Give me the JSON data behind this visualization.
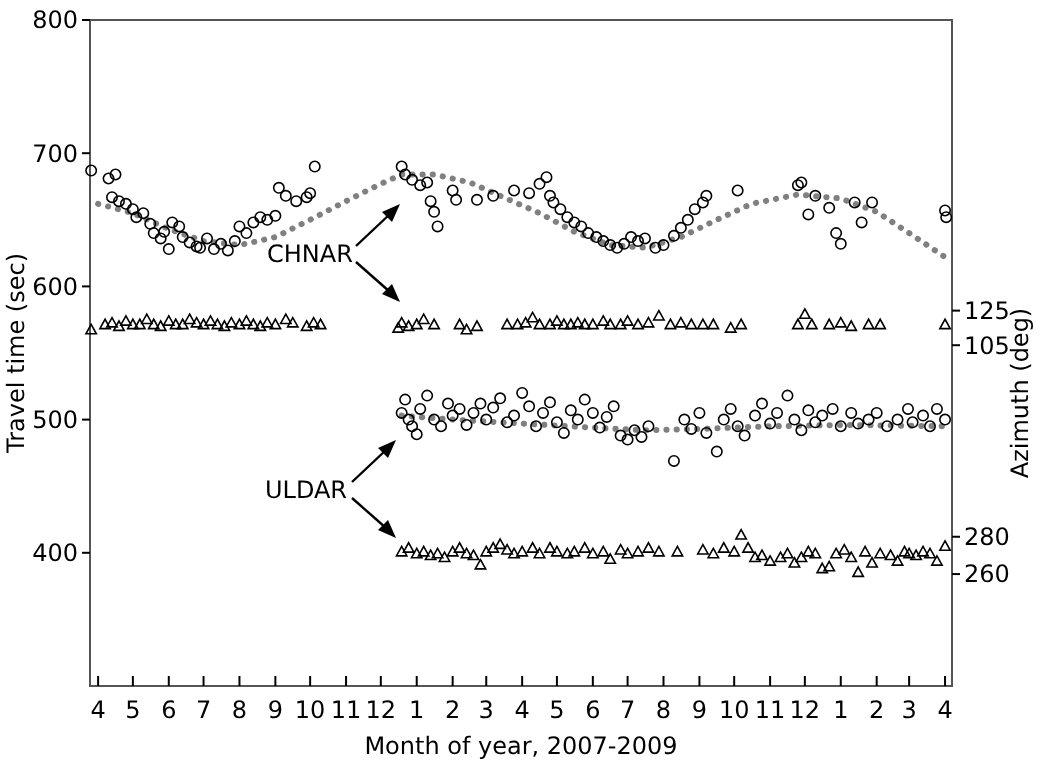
{
  "chart_data": {
    "type": "scatter",
    "xlabel": "Month of year, 2007-2009",
    "ylabel": "Travel time (sec)",
    "y2label": "Azimuth (deg)",
    "xlim": [
      "2007-03-25",
      "2009-04-07"
    ],
    "xticks": [
      {
        "value": "2007-04-01",
        "label": "4"
      },
      {
        "value": "2007-05-01",
        "label": "5"
      },
      {
        "value": "2007-06-01",
        "label": "6"
      },
      {
        "value": "2007-07-01",
        "label": "7"
      },
      {
        "value": "2007-08-01",
        "label": "8"
      },
      {
        "value": "2007-09-01",
        "label": "9"
      },
      {
        "value": "2007-10-01",
        "label": "10"
      },
      {
        "value": "2007-11-01",
        "label": "11"
      },
      {
        "value": "2007-12-01",
        "label": "12"
      },
      {
        "value": "2008-01-01",
        "label": "1"
      },
      {
        "value": "2008-02-01",
        "label": "2"
      },
      {
        "value": "2008-03-01",
        "label": "3"
      },
      {
        "value": "2008-04-01",
        "label": "4"
      },
      {
        "value": "2008-05-01",
        "label": "5"
      },
      {
        "value": "2008-06-01",
        "label": "6"
      },
      {
        "value": "2008-07-01",
        "label": "7"
      },
      {
        "value": "2008-08-01",
        "label": "8"
      },
      {
        "value": "2008-09-01",
        "label": "9"
      },
      {
        "value": "2008-10-01",
        "label": "10"
      },
      {
        "value": "2008-11-01",
        "label": "11"
      },
      {
        "value": "2008-12-01",
        "label": "12"
      },
      {
        "value": "2009-01-01",
        "label": "1"
      },
      {
        "value": "2009-02-01",
        "label": "2"
      },
      {
        "value": "2009-03-01",
        "label": "3"
      },
      {
        "value": "2009-04-01",
        "label": "4"
      }
    ],
    "ylim": [
      300,
      800
    ],
    "yticks": [
      400,
      500,
      600,
      700,
      800
    ],
    "y2lim": [
      -92,
      293
    ],
    "y2ticks": [
      125,
      105
    ],
    "y3lim": [
      200,
      557
    ],
    "y3ticks": [
      280,
      260
    ],
    "grid": false,
    "annotations": [
      "CHNAR",
      "ULDAR"
    ],
    "series": [
      {
        "type": "line",
        "color": "#808080",
        "line_style": "dotted",
        "marker": "none",
        "x": [
          "2007-04-01",
          "2007-05-01",
          "2007-06-01",
          "2007-07-01",
          "2007-08-01",
          "2007-09-01",
          "2007-10-01",
          "2007-11-01",
          "2007-12-01",
          "2007-12-19",
          "2008-01-16",
          "2008-02-16",
          "2008-03-13",
          "2008-04-16",
          "2008-05-16",
          "2008-06-16",
          "2008-07-16",
          "2008-08-16",
          "2008-09-16",
          "2008-10-16",
          "2008-11-25",
          "2009-01-01",
          "2009-02-01",
          "2009-03-01",
          "2009-04-01"
        ],
        "values": [
          662,
          655,
          643,
          634,
          631,
          637,
          650,
          664,
          677,
          684,
          684,
          678,
          668,
          655,
          641,
          631,
          629,
          637,
          650,
          662,
          669,
          666,
          656,
          640,
          622
        ]
      },
      {
        "type": "line",
        "color": "#808080",
        "line_style": "dotted",
        "marker": "none",
        "x": [
          "2007-12-19",
          "2008-02-01",
          "2008-04-01",
          "2008-06-01",
          "2008-07-16",
          "2008-09-01",
          "2008-11-01",
          "2009-01-01",
          "2009-04-01"
        ],
        "values": [
          503,
          500,
          497,
          494,
          492,
          493,
          495,
          496,
          495
        ]
      },
      {
        "color": "#000000",
        "marker": "circle",
        "x": [
          "2007-03-26",
          "2007-04-10",
          "2007-04-13",
          "2007-04-16",
          "2007-04-19",
          "2007-04-25",
          "2007-05-01",
          "2007-05-04",
          "2007-05-10",
          "2007-05-16",
          "2007-05-19",
          "2007-05-25",
          "2007-05-28",
          "2007-06-01",
          "2007-06-04",
          "2007-06-10",
          "2007-06-13",
          "2007-06-19",
          "2007-06-25",
          "2007-06-28",
          "2007-07-04",
          "2007-07-10",
          "2007-07-16",
          "2007-07-22",
          "2007-07-28",
          "2007-08-01",
          "2007-08-07",
          "2007-08-13",
          "2007-08-19",
          "2007-08-25",
          "2007-09-01",
          "2007-09-04",
          "2007-09-10",
          "2007-09-19",
          "2007-09-28",
          "2007-10-01",
          "2007-10-05",
          "2007-12-19",
          "2007-12-22",
          "2007-12-28",
          "2008-01-04",
          "2008-01-10",
          "2008-01-13",
          "2008-01-16",
          "2008-01-19",
          "2008-02-01",
          "2008-02-04",
          "2008-02-22",
          "2008-03-07",
          "2008-03-25",
          "2008-04-07",
          "2008-04-16",
          "2008-04-22",
          "2008-04-25",
          "2008-04-28",
          "2008-05-04",
          "2008-05-10",
          "2008-05-16",
          "2008-05-22",
          "2008-05-28",
          "2008-06-04",
          "2008-06-10",
          "2008-06-16",
          "2008-06-22",
          "2008-06-28",
          "2008-07-04",
          "2008-07-10",
          "2008-07-16",
          "2008-07-25",
          "2008-08-01",
          "2008-08-10",
          "2008-08-16",
          "2008-08-22",
          "2008-08-28",
          "2008-09-04",
          "2008-09-07",
          "2008-10-04",
          "2008-11-25",
          "2008-11-28",
          "2008-12-04",
          "2008-12-10",
          "2008-12-22",
          "2008-12-28",
          "2009-01-01",
          "2009-01-13",
          "2009-01-19",
          "2009-01-28",
          "2009-04-01",
          "2009-04-02"
        ],
        "values": [
          687,
          681,
          667,
          684,
          664,
          662,
          658,
          652,
          655,
          647,
          640,
          636,
          641,
          628,
          648,
          645,
          637,
          633,
          630,
          629,
          636,
          628,
          632,
          627,
          634,
          645,
          640,
          648,
          652,
          650,
          653,
          674,
          668,
          664,
          667,
          670,
          690,
          690,
          684,
          680,
          676,
          678,
          664,
          656,
          645,
          672,
          665,
          665,
          668,
          672,
          670,
          677,
          682,
          668,
          663,
          658,
          652,
          648,
          645,
          640,
          637,
          634,
          631,
          629,
          632,
          637,
          634,
          636,
          629,
          631,
          638,
          644,
          650,
          658,
          663,
          668,
          672,
          676,
          678,
          654,
          668,
          659,
          640,
          632,
          663,
          648,
          663,
          657,
          652
        ]
      },
      {
        "color": "#000000",
        "marker": "triangle",
        "axis": "y2",
        "x": [
          "2007-03-26",
          "2007-04-07",
          "2007-04-13",
          "2007-04-19",
          "2007-04-25",
          "2007-05-01",
          "2007-05-07",
          "2007-05-13",
          "2007-05-19",
          "2007-05-25",
          "2007-06-01",
          "2007-06-07",
          "2007-06-13",
          "2007-06-19",
          "2007-06-25",
          "2007-07-01",
          "2007-07-07",
          "2007-07-13",
          "2007-07-19",
          "2007-07-25",
          "2007-08-01",
          "2007-08-07",
          "2007-08-13",
          "2007-08-19",
          "2007-08-25",
          "2007-09-01",
          "2007-09-10",
          "2007-09-16",
          "2007-09-28",
          "2007-10-04",
          "2007-10-10",
          "2007-12-16",
          "2007-12-19",
          "2007-12-25",
          "2008-01-01",
          "2008-01-07",
          "2008-01-16",
          "2008-02-07",
          "2008-02-13",
          "2008-02-22",
          "2008-03-19",
          "2008-03-28",
          "2008-04-04",
          "2008-04-10",
          "2008-04-16",
          "2008-04-25",
          "2008-05-01",
          "2008-05-07",
          "2008-05-13",
          "2008-05-19",
          "2008-05-25",
          "2008-06-01",
          "2008-06-10",
          "2008-06-16",
          "2008-06-25",
          "2008-07-01",
          "2008-07-10",
          "2008-07-19",
          "2008-07-28",
          "2008-08-07",
          "2008-08-16",
          "2008-08-25",
          "2008-09-04",
          "2008-09-13",
          "2008-09-28",
          "2008-10-07",
          "2008-11-25",
          "2008-12-01",
          "2008-12-07",
          "2008-12-22",
          "2009-01-01",
          "2009-01-10",
          "2009-01-25",
          "2009-02-04",
          "2009-04-01"
        ],
        "values": [
          114,
          117,
          118,
          116,
          119,
          117,
          117,
          120,
          117,
          116,
          119,
          117,
          117,
          120,
          118,
          117,
          119,
          117,
          116,
          118,
          117,
          119,
          117,
          116,
          118,
          117,
          120,
          118,
          116,
          118,
          117,
          115,
          118,
          116,
          117,
          120,
          117,
          117,
          114,
          116,
          117,
          117,
          118,
          121,
          117,
          117,
          119,
          117,
          117,
          118,
          117,
          117,
          119,
          117,
          117,
          119,
          117,
          118,
          122,
          117,
          118,
          117,
          117,
          117,
          115,
          117,
          117,
          123,
          117,
          117,
          118,
          116,
          117,
          117,
          117
        ]
      },
      {
        "color": "#000000",
        "marker": "circle",
        "x": [
          "2007-12-19",
          "2007-12-22",
          "2007-12-25",
          "2007-12-28",
          "2008-01-01",
          "2008-01-04",
          "2008-01-10",
          "2008-01-16",
          "2008-01-22",
          "2008-01-28",
          "2008-02-01",
          "2008-02-07",
          "2008-02-13",
          "2008-02-19",
          "2008-02-25",
          "2008-03-01",
          "2008-03-07",
          "2008-03-13",
          "2008-03-19",
          "2008-03-25",
          "2008-04-01",
          "2008-04-07",
          "2008-04-13",
          "2008-04-19",
          "2008-04-25",
          "2008-05-01",
          "2008-05-07",
          "2008-05-13",
          "2008-05-19",
          "2008-05-25",
          "2008-06-01",
          "2008-06-07",
          "2008-06-13",
          "2008-06-19",
          "2008-06-25",
          "2008-07-01",
          "2008-07-07",
          "2008-07-13",
          "2008-07-19",
          "2008-08-10",
          "2008-08-19",
          "2008-08-25",
          "2008-09-01",
          "2008-09-07",
          "2008-09-16",
          "2008-09-22",
          "2008-09-28",
          "2008-10-04",
          "2008-10-10",
          "2008-10-19",
          "2008-10-25",
          "2008-11-01",
          "2008-11-07",
          "2008-11-16",
          "2008-11-22",
          "2008-11-28",
          "2008-12-04",
          "2008-12-10",
          "2008-12-16",
          "2008-12-25",
          "2009-01-01",
          "2009-01-10",
          "2009-01-16",
          "2009-01-25",
          "2009-02-01",
          "2009-02-10",
          "2009-02-19",
          "2009-02-28",
          "2009-03-04",
          "2009-03-13",
          "2009-03-19",
          "2009-03-25",
          "2009-04-01"
        ],
        "values": [
          505,
          515,
          500,
          495,
          489,
          508,
          518,
          500,
          495,
          512,
          503,
          508,
          496,
          505,
          512,
          500,
          509,
          516,
          498,
          503,
          520,
          510,
          495,
          505,
          513,
          498,
          490,
          507,
          500,
          515,
          505,
          494,
          502,
          510,
          488,
          485,
          492,
          487,
          495,
          469,
          500,
          493,
          505,
          490,
          476,
          500,
          508,
          495,
          488,
          503,
          512,
          497,
          505,
          518,
          500,
          492,
          507,
          498,
          503,
          508,
          495,
          505,
          497,
          500,
          505,
          495,
          500,
          508,
          498,
          503,
          495,
          508,
          500
        ]
      },
      {
        "color": "#000000",
        "marker": "triangle",
        "axis": "y3",
        "x": [
          "2007-12-19",
          "2007-12-25",
          "2008-01-01",
          "2008-01-07",
          "2008-01-13",
          "2008-01-19",
          "2008-01-25",
          "2008-02-01",
          "2008-02-07",
          "2008-02-13",
          "2008-02-19",
          "2008-02-25",
          "2008-03-01",
          "2008-03-07",
          "2008-03-13",
          "2008-03-19",
          "2008-03-25",
          "2008-04-01",
          "2008-04-10",
          "2008-04-16",
          "2008-04-25",
          "2008-05-01",
          "2008-05-10",
          "2008-05-16",
          "2008-05-25",
          "2008-06-01",
          "2008-06-10",
          "2008-06-16",
          "2008-06-25",
          "2008-07-01",
          "2008-07-10",
          "2008-07-19",
          "2008-07-28",
          "2008-08-13",
          "2008-09-04",
          "2008-09-13",
          "2008-09-22",
          "2008-10-01",
          "2008-10-07",
          "2008-10-13",
          "2008-10-19",
          "2008-10-25",
          "2008-11-01",
          "2008-11-10",
          "2008-11-16",
          "2008-11-22",
          "2008-11-28",
          "2008-12-04",
          "2008-12-10",
          "2008-12-16",
          "2008-12-22",
          "2008-12-28",
          "2009-01-04",
          "2009-01-10",
          "2009-01-16",
          "2009-01-22",
          "2009-01-28",
          "2009-02-04",
          "2009-02-13",
          "2009-02-19",
          "2009-02-25",
          "2009-03-01",
          "2009-03-07",
          "2009-03-13",
          "2009-03-19",
          "2009-03-25",
          "2009-04-01"
        ],
        "values": [
          272,
          274,
          271,
          272,
          270,
          271,
          269,
          272,
          274,
          271,
          270,
          265,
          272,
          274,
          276,
          273,
          271,
          272,
          274,
          271,
          274,
          272,
          271,
          272,
          274,
          271,
          272,
          268,
          273,
          271,
          272,
          274,
          272,
          272,
          273,
          271,
          274,
          272,
          281,
          274,
          269,
          270,
          267,
          269,
          271,
          266,
          269,
          272,
          271,
          263,
          264,
          271,
          273,
          269,
          261,
          272,
          266,
          271,
          270,
          267,
          272,
          271,
          270,
          272,
          271,
          267,
          275
        ]
      }
    ]
  }
}
